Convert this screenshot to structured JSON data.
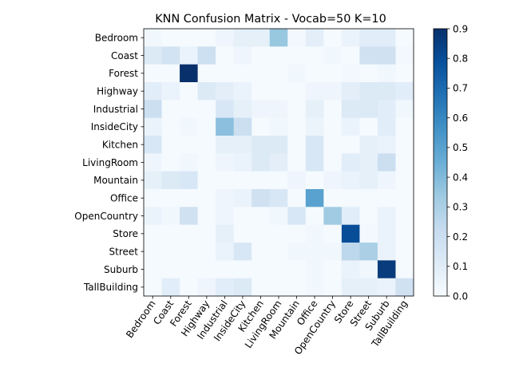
{
  "chart_data": {
    "type": "heatmap",
    "title": "KNN Confusion Matrix - Vocab=50 K=10",
    "xlabel": "",
    "ylabel": "",
    "colormap": "Blues",
    "vmin": 0.0,
    "vmax": 0.9,
    "colorbar_ticks": [
      "0.0",
      "0.1",
      "0.2",
      "0.3",
      "0.4",
      "0.5",
      "0.6",
      "0.7",
      "0.8",
      "0.9"
    ],
    "categories": [
      "Bedroom",
      "Coast",
      "Forest",
      "Highway",
      "Industrial",
      "InsideCity",
      "Kitchen",
      "LivingRoom",
      "Mountain",
      "Office",
      "OpenCountry",
      "Store",
      "Street",
      "Suburb",
      "TallBuilding"
    ],
    "values": [
      [
        0.03,
        0.01,
        0.01,
        0.01,
        0.04,
        0.08,
        0.08,
        0.35,
        0.02,
        0.09,
        0.01,
        0.06,
        0.1,
        0.1,
        0.01
      ],
      [
        0.12,
        0.17,
        0.06,
        0.19,
        0.01,
        0.04,
        0.01,
        0.01,
        0.01,
        0.01,
        0.03,
        0.01,
        0.18,
        0.18,
        0.02
      ],
      [
        0.01,
        0.01,
        0.9,
        0.01,
        0.01,
        0.01,
        0.01,
        0.01,
        0.03,
        0.01,
        0.01,
        0.02,
        0.01,
        0.03,
        0.01
      ],
      [
        0.1,
        0.06,
        0.01,
        0.12,
        0.09,
        0.06,
        0.01,
        0.01,
        0.01,
        0.04,
        0.04,
        0.09,
        0.12,
        0.12,
        0.1
      ],
      [
        0.2,
        0.01,
        0.01,
        0.01,
        0.14,
        0.08,
        0.04,
        0.04,
        0.01,
        0.08,
        0.01,
        0.12,
        0.12,
        0.1,
        0.03
      ],
      [
        0.06,
        0.01,
        0.03,
        0.01,
        0.38,
        0.2,
        0.01,
        0.03,
        0.01,
        0.05,
        0.01,
        0.06,
        0.01,
        0.1,
        0.01
      ],
      [
        0.14,
        0.01,
        0.01,
        0.01,
        0.08,
        0.08,
        0.12,
        0.12,
        0.01,
        0.14,
        0.01,
        0.01,
        0.08,
        0.06,
        0.01
      ],
      [
        0.04,
        0.01,
        0.03,
        0.01,
        0.04,
        0.06,
        0.12,
        0.09,
        0.01,
        0.14,
        0.01,
        0.1,
        0.08,
        0.2,
        0.01
      ],
      [
        0.08,
        0.12,
        0.14,
        0.01,
        0.01,
        0.01,
        0.01,
        0.01,
        0.04,
        0.01,
        0.04,
        0.06,
        0.08,
        0.04,
        0.01
      ],
      [
        0.01,
        0.01,
        0.01,
        0.01,
        0.04,
        0.06,
        0.18,
        0.14,
        0.01,
        0.5,
        0.01,
        0.01,
        0.01,
        0.01,
        0.01
      ],
      [
        0.06,
        0.03,
        0.18,
        0.01,
        0.04,
        0.01,
        0.01,
        0.03,
        0.14,
        0.01,
        0.33,
        0.1,
        0.01,
        0.06,
        0.01
      ],
      [
        0.01,
        0.01,
        0.01,
        0.01,
        0.08,
        0.01,
        0.01,
        0.01,
        0.01,
        0.03,
        0.01,
        0.8,
        0.02,
        0.06,
        0.01
      ],
      [
        0.01,
        0.01,
        0.01,
        0.01,
        0.06,
        0.14,
        0.01,
        0.01,
        0.03,
        0.03,
        0.03,
        0.25,
        0.3,
        0.06,
        0.01
      ],
      [
        0.01,
        0.01,
        0.01,
        0.01,
        0.01,
        0.01,
        0.01,
        0.01,
        0.01,
        0.03,
        0.01,
        0.06,
        0.03,
        0.86,
        0.01
      ],
      [
        0.01,
        0.1,
        0.01,
        0.04,
        0.1,
        0.12,
        0.01,
        0.01,
        0.01,
        0.03,
        0.01,
        0.08,
        0.08,
        0.06,
        0.18
      ]
    ]
  }
}
